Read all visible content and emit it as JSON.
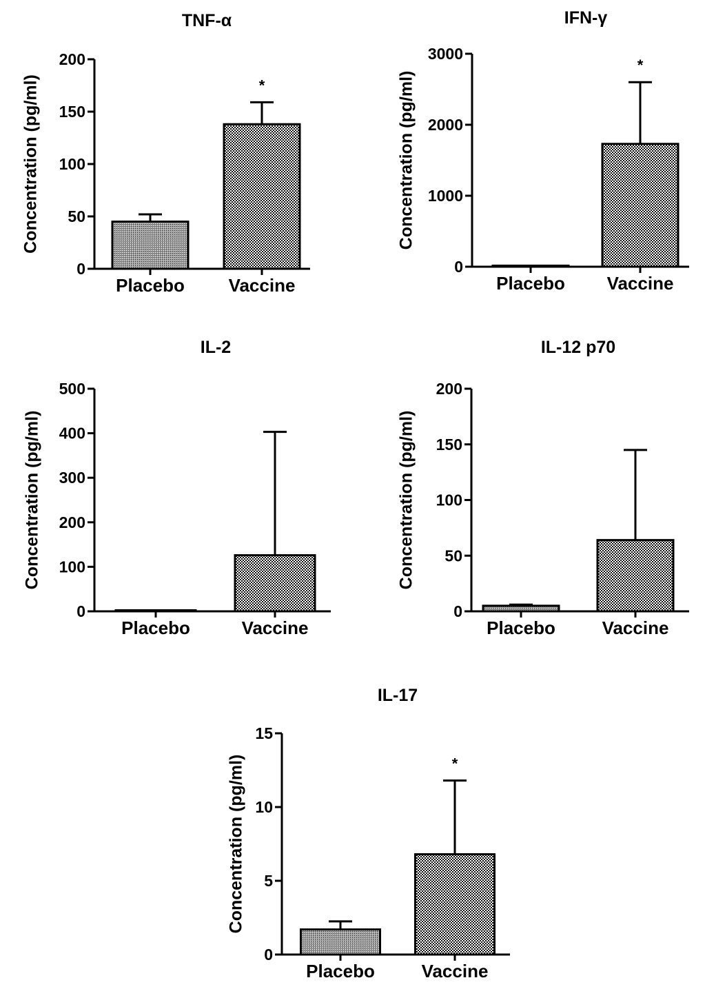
{
  "chart_data": [
    {
      "type": "bar",
      "title": "TNF-α",
      "ylabel": "Concentration (pg/ml)",
      "categories": [
        "Placebo",
        "Vaccine"
      ],
      "values": [
        45,
        138
      ],
      "errors": [
        7,
        21
      ],
      "significance": [
        "",
        "*"
      ],
      "ylim": [
        0,
        200
      ],
      "yticks": [
        0,
        50,
        100,
        150,
        200
      ]
    },
    {
      "type": "bar",
      "title": "IFN-γ",
      "ylabel": "Concentration (pg/ml)",
      "categories": [
        "Placebo",
        "Vaccine"
      ],
      "values": [
        15,
        1730
      ],
      "errors": [
        0,
        870
      ],
      "significance": [
        "",
        "*"
      ],
      "ylim": [
        0,
        3000
      ],
      "yticks": [
        0,
        1000,
        2000,
        3000
      ]
    },
    {
      "type": "bar",
      "title": "IL-2",
      "ylabel": "Concentration (pg/ml)",
      "categories": [
        "Placebo",
        "Vaccine"
      ],
      "values": [
        2,
        126
      ],
      "errors": [
        0,
        277
      ],
      "significance": [
        "",
        ""
      ],
      "ylim": [
        0,
        500
      ],
      "yticks": [
        0,
        100,
        200,
        300,
        400,
        500
      ]
    },
    {
      "type": "bar",
      "title": "IL-12 p70",
      "ylabel": "Concentration (pg/ml)",
      "categories": [
        "Placebo",
        "Vaccine"
      ],
      "values": [
        5,
        64
      ],
      "errors": [
        1,
        81
      ],
      "significance": [
        "",
        ""
      ],
      "ylim": [
        0,
        200
      ],
      "yticks": [
        0,
        50,
        100,
        150,
        200
      ]
    },
    {
      "type": "bar",
      "title": "IL-17",
      "ylabel": "Concentration (pg/ml)",
      "categories": [
        "Placebo",
        "Vaccine"
      ],
      "values": [
        1.7,
        6.8
      ],
      "errors": [
        0.55,
        5.0
      ],
      "significance": [
        "",
        "*"
      ],
      "ylim": [
        0,
        15
      ],
      "yticks": [
        0,
        5,
        10,
        15
      ]
    }
  ]
}
